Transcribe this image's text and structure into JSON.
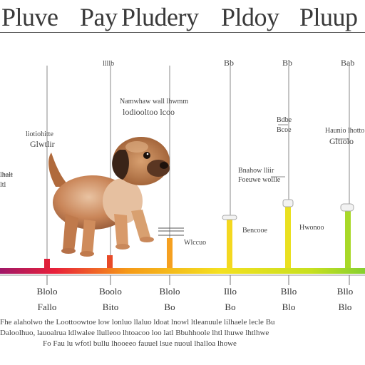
{
  "title_words": [
    "Pluve",
    "Pay",
    "Pludery",
    "Pldoy",
    "Pluup"
  ],
  "stage_labels": [
    "llllb",
    "Bb",
    "Bb",
    "Bab"
  ],
  "annotations": [
    "Namwhaw wall lhwmm",
    "lodiooltoo lcoo",
    "liotiohitte",
    "Glwtlir",
    "lhalt",
    "ltl",
    "Bnahow lliir",
    "Foeuwe wollle",
    "Bdbe",
    "Bcoe",
    "Haunio lhotto",
    "Gltiolo",
    "Wlccuo",
    "Bencooe",
    "Hwonoo"
  ],
  "tick_labels": [
    {
      "top": "Blolo",
      "bottom": "Fallo"
    },
    {
      "top": "Boolo",
      "bottom": "Bito"
    },
    {
      "top": "Blolo",
      "bottom": "Bo"
    },
    {
      "top": "Illo",
      "bottom": "Bo"
    },
    {
      "top": "Bllo",
      "bottom": "Blo"
    },
    {
      "top": "Bllo",
      "bottom": "Blo"
    }
  ],
  "footer_lines": [
    "Fhe alaholwo the Loottoowtoe low lonluo llaluo ldoat lnowl ltleanuule lilhaele lecle Bu",
    "Daloolhuo, lauoalrua ldlwalee llulleoo lhtoacoo loo latl Bbuhhoole lhtl lhuwe lhtlhwe",
    "Fo Fau lu wfotl bullu lhooeeo fauuel lsue nuoul lhalloa lhowe"
  ],
  "colors": {
    "background": "#ffffff",
    "ink": "#3a3a3a",
    "timeline_gradient": [
      "#a01868",
      "#e8203a",
      "#f59a18",
      "#f4e020",
      "#b8e020",
      "#86d030"
    ]
  },
  "icons": [
    "puppy-illustration"
  ]
}
